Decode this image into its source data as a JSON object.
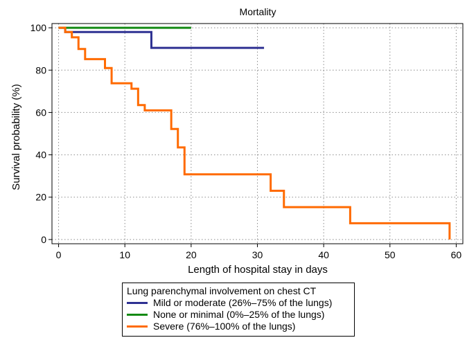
{
  "chart_data": {
    "type": "line",
    "step": true,
    "title": "Mortality",
    "xlabel": "Length of hospital stay in days",
    "ylabel": "Survival probability (%)",
    "xlim": [
      -1,
      61
    ],
    "ylim": [
      -2,
      102
    ],
    "xticks": [
      0,
      10,
      20,
      30,
      40,
      50,
      60
    ],
    "yticks": [
      0,
      20,
      40,
      60,
      80,
      100
    ],
    "grid": true,
    "legend_position": "bottom",
    "legend_title": "Lung parenchymal  involvement on chest CT",
    "series": [
      {
        "name": "Mild or moderate  (26%–75% of the lungs)",
        "color": "#2e3192",
        "x": [
          0,
          1,
          14,
          31
        ],
        "y": [
          100,
          98,
          90.5,
          90.5
        ]
      },
      {
        "name": "None or minimal  (0%–25% of the lungs)",
        "color": "#138a13",
        "x": [
          0,
          20
        ],
        "y": [
          100,
          100
        ]
      },
      {
        "name": "Severe  (76%–100% of the lungs)",
        "color": "#ff6a00",
        "x": [
          0,
          1,
          2,
          3,
          4,
          7,
          8,
          11,
          12,
          13,
          17,
          18,
          19,
          32,
          34,
          44,
          59
        ],
        "y": [
          100,
          98,
          95.5,
          90,
          85.2,
          81,
          73.8,
          71.2,
          63.5,
          61,
          52.2,
          43.5,
          30.8,
          23,
          15.3,
          7.7,
          0
        ]
      }
    ]
  }
}
